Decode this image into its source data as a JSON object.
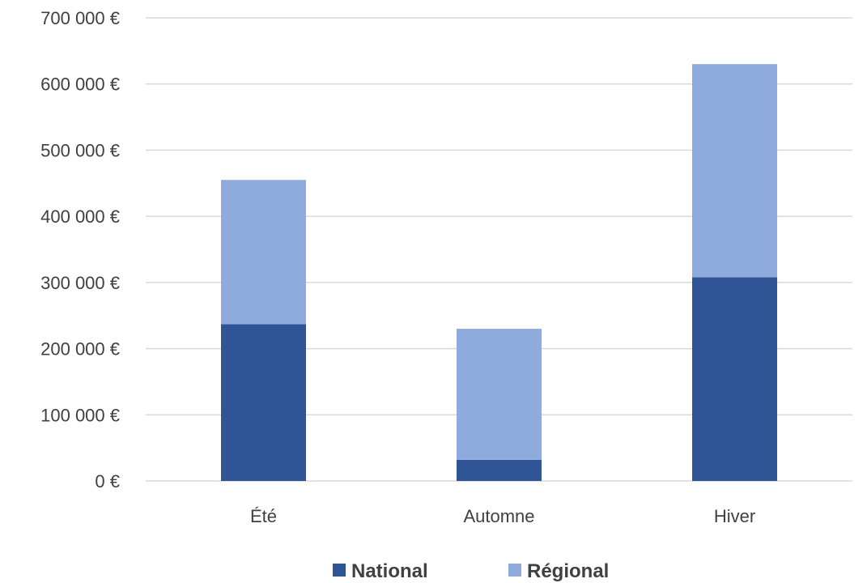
{
  "chart_data": {
    "type": "bar",
    "stacked": true,
    "categories": [
      "Été",
      "Automne",
      "Hiver"
    ],
    "series": [
      {
        "name": "National",
        "values": [
          237000,
          32000,
          308000
        ],
        "color": "#2f5597"
      },
      {
        "name": "Régional",
        "values": [
          218000,
          198000,
          322000
        ],
        "color": "#8faadc"
      }
    ],
    "ylim": [
      0,
      700000
    ],
    "yticks": [
      0,
      100000,
      200000,
      300000,
      400000,
      500000,
      600000,
      700000
    ],
    "ytick_labels": [
      "0 €",
      "100 000 €",
      "200 000 €",
      "300 000 €",
      "400 000 €",
      "500 000 €",
      "600 000 €",
      "700 000 €"
    ],
    "grid": true,
    "gridline_color": "#d9d9d9",
    "legend_position": "bottom"
  }
}
